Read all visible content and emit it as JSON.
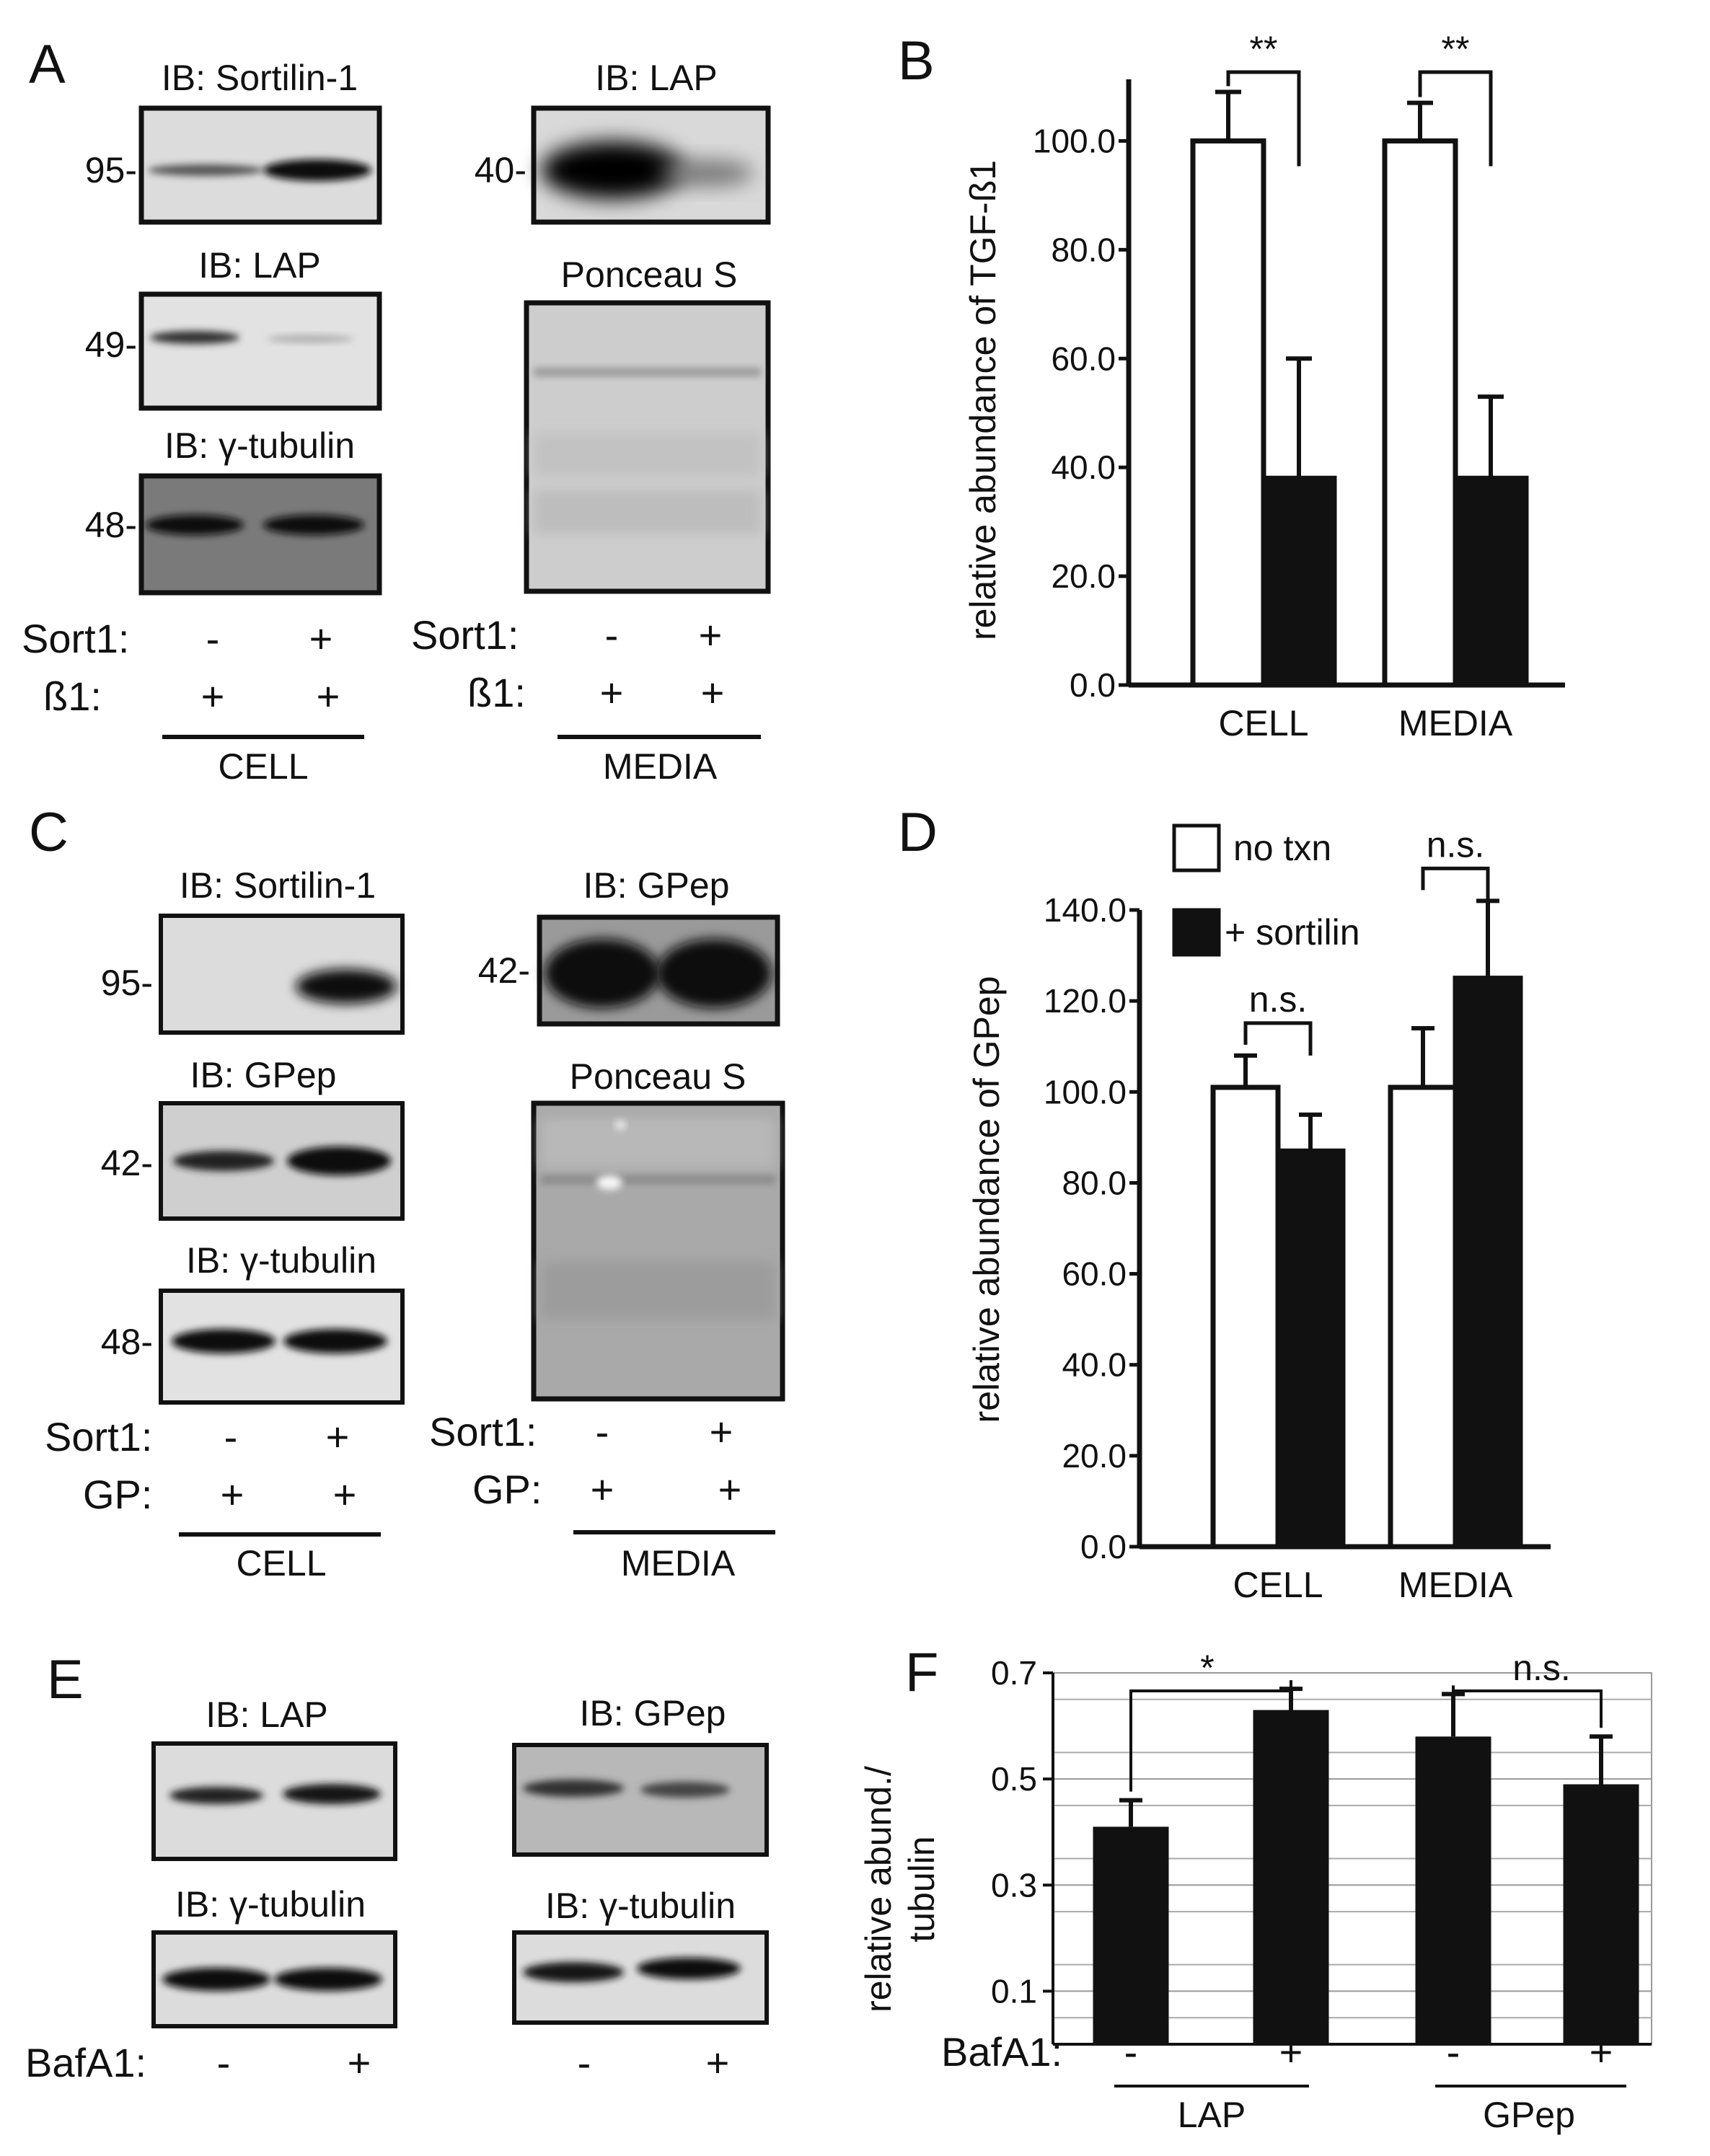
{
  "panels": {
    "A": {
      "letter": "A",
      "blots": {
        "sortilin": {
          "title": "IB: Sortilin-1",
          "mw": "95-"
        },
        "lap_cell": {
          "title": "IB: LAP",
          "mw": "49-"
        },
        "tubulin": {
          "title": "IB: γ-tubulin",
          "mw": "48-"
        },
        "lap_media": {
          "title": "IB: LAP",
          "mw": "40-"
        },
        "ponceau": {
          "title": "Ponceau S"
        }
      },
      "rows": {
        "sort1": "Sort1:",
        "b1": "ß1:"
      },
      "cell_signs": {
        "sort1": [
          "-",
          "+"
        ],
        "b1": [
          "+",
          "+"
        ]
      },
      "media_signs": {
        "sort1": [
          "-",
          "+"
        ],
        "b1": [
          "+",
          "+"
        ]
      },
      "groups": {
        "cell": "CELL",
        "media": "MEDIA"
      }
    },
    "C": {
      "letter": "C",
      "blots": {
        "sortilin": {
          "title": "IB: Sortilin-1",
          "mw": "95-"
        },
        "gpep_cell": {
          "title": "IB: GPep",
          "mw": "42-"
        },
        "tubulin": {
          "title": "IB: γ-tubulin",
          "mw": "48-"
        },
        "gpep_media": {
          "title": "IB: GPep",
          "mw": "42-"
        },
        "ponceau": {
          "title": "Ponceau S"
        }
      },
      "rows": {
        "sort1": "Sort1:",
        "gp": "GP:"
      },
      "cell_signs": {
        "sort1": [
          "-",
          "+"
        ],
        "gp": [
          "+",
          "+"
        ]
      },
      "media_signs": {
        "sort1": [
          "-",
          "+"
        ],
        "gp": [
          "+",
          "+"
        ]
      },
      "groups": {
        "cell": "CELL",
        "media": "MEDIA"
      }
    },
    "E": {
      "letter": "E",
      "blots": {
        "lap": {
          "title": "IB: LAP"
        },
        "tub_left": {
          "title": "IB: γ-tubulin"
        },
        "gpep": {
          "title": "IB: GPep"
        },
        "tub_right": {
          "title": "IB: γ-tubulin"
        }
      },
      "row": "BafA1:",
      "signs": [
        "-",
        "+",
        "-",
        "+"
      ]
    }
  },
  "chart_data": [
    {
      "panel": "B",
      "type": "bar",
      "ylabel": "relative abundance of TGF-ß1",
      "categories": [
        "CELL",
        "MEDIA"
      ],
      "ylim": [
        0,
        110
      ],
      "yticks": [
        "0.0",
        "20.0",
        "40.0",
        "60.0",
        "80.0",
        "100.0"
      ],
      "series": [
        {
          "values": [
            100,
            100
          ],
          "errors": [
            9,
            7
          ],
          "color": "#ffffff"
        },
        {
          "values": [
            38,
            38
          ],
          "errors": [
            22,
            15
          ],
          "color": "#111111"
        }
      ],
      "annotations": [
        "**",
        "**"
      ]
    },
    {
      "panel": "D",
      "type": "bar",
      "ylabel": "relative abundance of GPep",
      "categories": [
        "CELL",
        "MEDIA"
      ],
      "ylim": [
        0,
        140
      ],
      "yticks": [
        "0.0",
        "20.0",
        "40.0",
        "60.0",
        "80.0",
        "100.0",
        "120.0",
        "140.0"
      ],
      "series": [
        {
          "name": "no txn",
          "values": [
            101,
            101
          ],
          "errors": [
            7,
            13
          ],
          "color": "#ffffff"
        },
        {
          "name": "+ sortilin",
          "values": [
            87,
            125
          ],
          "errors": [
            8,
            17
          ],
          "color": "#111111"
        }
      ],
      "legend": [
        "no txn",
        "+ sortilin"
      ],
      "annotations": [
        "n.s.",
        "n.s."
      ]
    },
    {
      "panel": "F",
      "type": "bar",
      "ylabel": [
        "relative abund./",
        "tubulin"
      ],
      "xlabel_row": "BafA1:",
      "categories": [
        "-",
        "+",
        "-",
        "+"
      ],
      "groups": [
        "LAP",
        "GPep"
      ],
      "values": [
        0.41,
        0.63,
        0.58,
        0.49
      ],
      "errors": [
        0.05,
        0.04,
        0.08,
        0.09
      ],
      "ylim": [
        0,
        0.7
      ],
      "yticks": [
        "0.1",
        "0.3",
        "0.5",
        "0.7"
      ],
      "grid": true,
      "annotations": [
        "*",
        "n.s."
      ]
    }
  ]
}
